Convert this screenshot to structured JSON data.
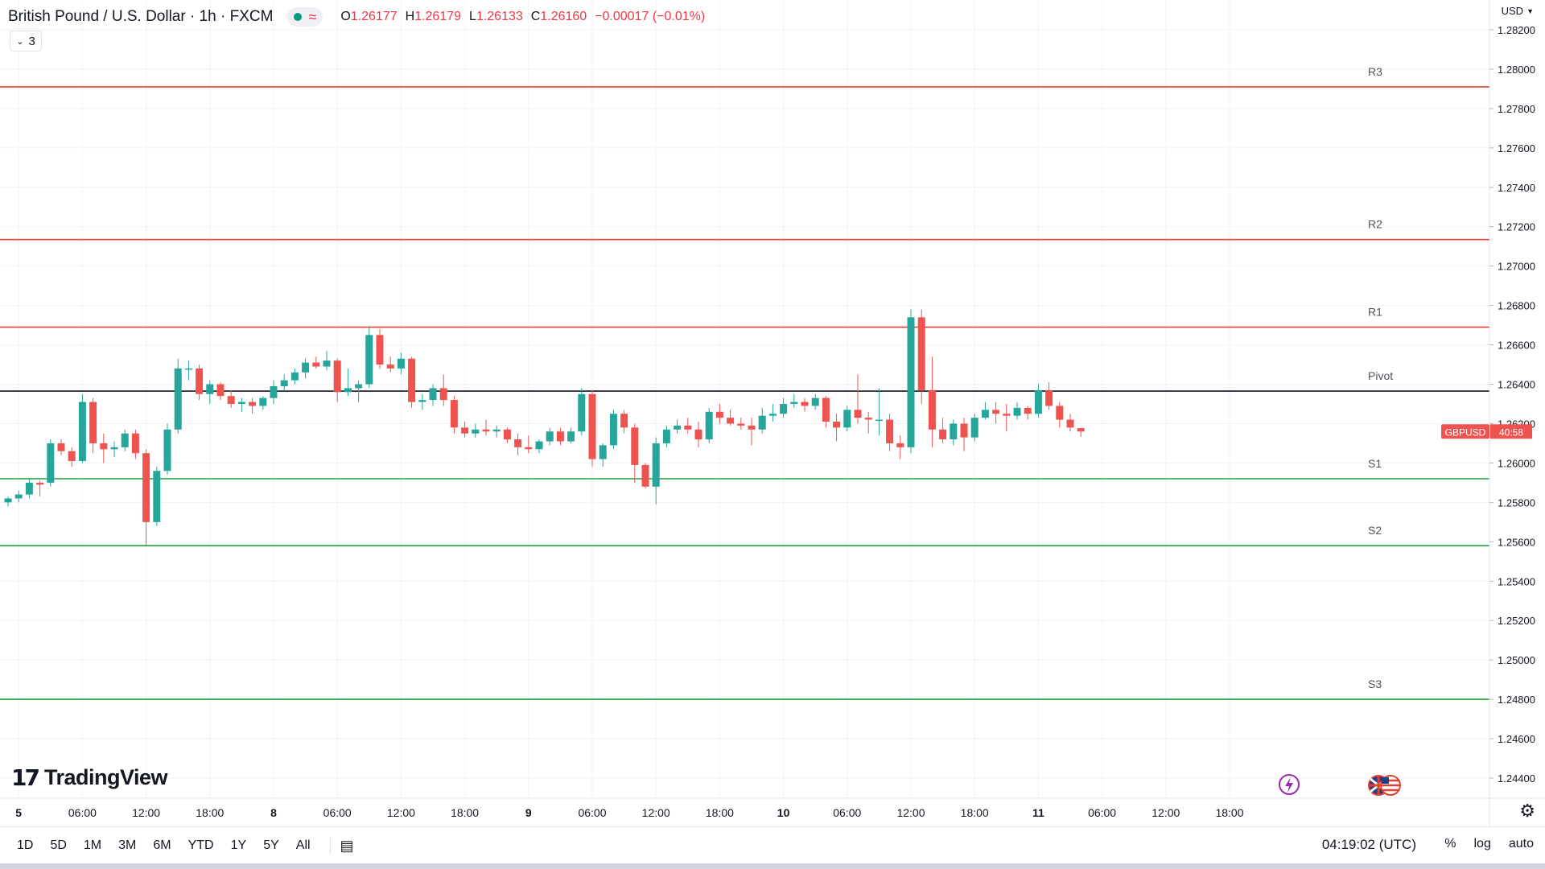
{
  "header": {
    "title": "British Pound / U.S. Dollar · 1h · FXCM",
    "ohlc": [
      {
        "key": "O",
        "value": "1.26177"
      },
      {
        "key": "H",
        "value": "1.26179"
      },
      {
        "key": "L",
        "value": "1.26133"
      },
      {
        "key": "C",
        "value": "1.26160"
      },
      {
        "key": "",
        "value": "−0.00017 (−0.01%)"
      }
    ],
    "collapsed_count": "3",
    "currency": "USD"
  },
  "brand": {
    "name": "TradingView",
    "mark": "17"
  },
  "price_tag": {
    "symbol": "GBPUSD",
    "countdown": "40:58",
    "price": 1.2616
  },
  "bottom_bar": {
    "ranges": [
      "1D",
      "5D",
      "1M",
      "3M",
      "6M",
      "YTD",
      "1Y",
      "5Y",
      "All"
    ],
    "time": "04:19:02 (UTC)",
    "scale": [
      "%",
      "log",
      "auto"
    ]
  },
  "colors": {
    "up": "#26a69a",
    "down": "#ef5350",
    "resistance": "#e0402d",
    "support": "#23a33a",
    "pivot": "#131722"
  },
  "chart_data": {
    "type": "candlestick",
    "title": "British Pound / U.S. Dollar · 1h · FXCM",
    "ylim": [
      1.243,
      1.2825
    ],
    "y_ticks": [
      "1.28200",
      "1.28000",
      "1.27800",
      "1.27600",
      "1.27400",
      "1.27200",
      "1.27000",
      "1.26800",
      "1.26600",
      "1.26400",
      "1.26200",
      "1.26000",
      "1.25800",
      "1.25600",
      "1.25400",
      "1.25200",
      "1.25000",
      "1.24800",
      "1.24600",
      "1.24400"
    ],
    "x_ticks": [
      {
        "label": "5",
        "index": 1
      },
      {
        "label": "06:00",
        "index": 7
      },
      {
        "label": "12:00",
        "index": 13
      },
      {
        "label": "18:00",
        "index": 19
      },
      {
        "label": "8",
        "index": 25
      },
      {
        "label": "06:00",
        "index": 31
      },
      {
        "label": "12:00",
        "index": 37
      },
      {
        "label": "18:00",
        "index": 43
      },
      {
        "label": "9",
        "index": 49
      },
      {
        "label": "06:00",
        "index": 55
      },
      {
        "label": "12:00",
        "index": 61
      },
      {
        "label": "18:00",
        "index": 67
      },
      {
        "label": "10",
        "index": 73
      },
      {
        "label": "06:00",
        "index": 79
      },
      {
        "label": "12:00",
        "index": 85
      },
      {
        "label": "18:00",
        "index": 91
      },
      {
        "label": "11",
        "index": 97
      },
      {
        "label": "06:00",
        "index": 103
      },
      {
        "label": "12:00",
        "index": 109
      },
      {
        "label": "18:00",
        "index": 115
      }
    ],
    "levels": [
      {
        "label": "R3",
        "value": 1.2791,
        "kind": "resistance"
      },
      {
        "label": "R2",
        "value": 1.27135,
        "kind": "resistance"
      },
      {
        "label": "R1",
        "value": 1.2669,
        "kind": "resistance"
      },
      {
        "label": "Pivot",
        "value": 1.26365,
        "kind": "pivot"
      },
      {
        "label": "S1",
        "value": 1.2592,
        "kind": "support"
      },
      {
        "label": "S2",
        "value": 1.2558,
        "kind": "support"
      },
      {
        "label": "S3",
        "value": 1.248,
        "kind": "support"
      }
    ],
    "candles": [
      [
        1.258,
        1.2583,
        1.2578,
        1.2582
      ],
      [
        1.2582,
        1.2586,
        1.258,
        1.2584
      ],
      [
        1.2584,
        1.2592,
        1.2582,
        1.259
      ],
      [
        1.259,
        1.2591,
        1.2583,
        1.2589
      ],
      [
        1.259,
        1.2612,
        1.2588,
        1.261
      ],
      [
        1.261,
        1.2612,
        1.2604,
        1.2606
      ],
      [
        1.2606,
        1.2608,
        1.2598,
        1.2601
      ],
      [
        1.2601,
        1.2635,
        1.26,
        1.2631
      ],
      [
        1.2631,
        1.2633,
        1.2605,
        1.261
      ],
      [
        1.261,
        1.2615,
        1.26,
        1.2607
      ],
      [
        1.2607,
        1.2611,
        1.2603,
        1.2608
      ],
      [
        1.2608,
        1.2617,
        1.2606,
        1.2615
      ],
      [
        1.2615,
        1.2617,
        1.2602,
        1.2605
      ],
      [
        1.2605,
        1.2607,
        1.2558,
        1.257
      ],
      [
        1.257,
        1.2598,
        1.2568,
        1.2596
      ],
      [
        1.2596,
        1.262,
        1.2594,
        1.2617
      ],
      [
        1.2617,
        1.2653,
        1.2615,
        1.2648
      ],
      [
        1.2648,
        1.2652,
        1.2642,
        1.2648
      ],
      [
        1.2648,
        1.265,
        1.2632,
        1.2635
      ],
      [
        1.2635,
        1.2642,
        1.263,
        1.264
      ],
      [
        1.264,
        1.2641,
        1.2632,
        1.2634
      ],
      [
        1.2634,
        1.2637,
        1.2628,
        1.263
      ],
      [
        1.263,
        1.2633,
        1.2626,
        1.2631
      ],
      [
        1.2631,
        1.2633,
        1.2625,
        1.2629
      ],
      [
        1.2629,
        1.2634,
        1.2627,
        1.2633
      ],
      [
        1.2633,
        1.2642,
        1.263,
        1.2639
      ],
      [
        1.2639,
        1.2645,
        1.2637,
        1.2642
      ],
      [
        1.2642,
        1.2648,
        1.264,
        1.2646
      ],
      [
        1.2646,
        1.2653,
        1.2643,
        1.2651
      ],
      [
        1.2651,
        1.2654,
        1.2648,
        1.2649
      ],
      [
        1.2649,
        1.2657,
        1.2647,
        1.2652
      ],
      [
        1.2652,
        1.2653,
        1.2631,
        1.2636
      ],
      [
        1.2636,
        1.2648,
        1.2634,
        1.2638
      ],
      [
        1.2638,
        1.2642,
        1.2631,
        1.264
      ],
      [
        1.264,
        1.2669,
        1.2638,
        1.2665
      ],
      [
        1.2665,
        1.2668,
        1.2648,
        1.265
      ],
      [
        1.265,
        1.2654,
        1.2646,
        1.2648
      ],
      [
        1.2648,
        1.2656,
        1.2645,
        1.2653
      ],
      [
        1.2653,
        1.2654,
        1.2628,
        1.2631
      ],
      [
        1.2631,
        1.2635,
        1.2627,
        1.2632
      ],
      [
        1.2632,
        1.264,
        1.2629,
        1.2638
      ],
      [
        1.2638,
        1.2645,
        1.2629,
        1.2632
      ],
      [
        1.2632,
        1.2634,
        1.2615,
        1.2618
      ],
      [
        1.2618,
        1.2621,
        1.2613,
        1.2615
      ],
      [
        1.2615,
        1.262,
        1.2613,
        1.2617
      ],
      [
        1.2617,
        1.2622,
        1.2614,
        1.2616
      ],
      [
        1.2616,
        1.2619,
        1.2613,
        1.2617
      ],
      [
        1.2617,
        1.2618,
        1.261,
        1.2612
      ],
      [
        1.2612,
        1.2615,
        1.2604,
        1.2608
      ],
      [
        1.2608,
        1.2614,
        1.2605,
        1.2607
      ],
      [
        1.2607,
        1.2612,
        1.2605,
        1.2611
      ],
      [
        1.2611,
        1.2618,
        1.2609,
        1.2616
      ],
      [
        1.2616,
        1.2618,
        1.2609,
        1.2611
      ],
      [
        1.2611,
        1.2618,
        1.261,
        1.2616
      ],
      [
        1.2616,
        1.2638,
        1.2614,
        1.2635
      ],
      [
        1.2635,
        1.2637,
        1.2598,
        1.2602
      ],
      [
        1.2602,
        1.261,
        1.2598,
        1.2609
      ],
      [
        1.2609,
        1.2627,
        1.2607,
        1.2625
      ],
      [
        1.2625,
        1.2627,
        1.2615,
        1.2618
      ],
      [
        1.2618,
        1.262,
        1.259,
        1.2599
      ],
      [
        1.2599,
        1.26,
        1.2587,
        1.2588
      ],
      [
        1.2588,
        1.2613,
        1.2579,
        1.261
      ],
      [
        1.261,
        1.2619,
        1.2608,
        1.2617
      ],
      [
        1.2617,
        1.2622,
        1.2615,
        1.2619
      ],
      [
        1.2619,
        1.2623,
        1.2615,
        1.2617
      ],
      [
        1.2617,
        1.2621,
        1.2608,
        1.2612
      ],
      [
        1.2612,
        1.2628,
        1.261,
        1.2626
      ],
      [
        1.2626,
        1.263,
        1.262,
        1.2623
      ],
      [
        1.2623,
        1.2627,
        1.2619,
        1.262
      ],
      [
        1.262,
        1.2623,
        1.2617,
        1.2619
      ],
      [
        1.2619,
        1.2623,
        1.2609,
        1.2617
      ],
      [
        1.2617,
        1.2628,
        1.2615,
        1.2624
      ],
      [
        1.2624,
        1.263,
        1.2621,
        1.2625
      ],
      [
        1.2625,
        1.2633,
        1.2623,
        1.263
      ],
      [
        1.263,
        1.2635,
        1.2628,
        1.2631
      ],
      [
        1.2631,
        1.2633,
        1.2626,
        1.2629
      ],
      [
        1.2629,
        1.2635,
        1.2627,
        1.2633
      ],
      [
        1.2633,
        1.2634,
        1.2618,
        1.2621
      ],
      [
        1.2621,
        1.2625,
        1.2611,
        1.2618
      ],
      [
        1.2618,
        1.2629,
        1.2616,
        1.2627
      ],
      [
        1.2627,
        1.2645,
        1.262,
        1.2623
      ],
      [
        1.2623,
        1.2626,
        1.2615,
        1.2622
      ],
      [
        1.2622,
        1.2638,
        1.2614,
        1.2622
      ],
      [
        1.2622,
        1.2625,
        1.2606,
        1.261
      ],
      [
        1.261,
        1.2614,
        1.2602,
        1.2608
      ],
      [
        1.2608,
        1.2678,
        1.2605,
        1.2674
      ],
      [
        1.2674,
        1.2678,
        1.263,
        1.2637
      ],
      [
        1.2637,
        1.2654,
        1.2608,
        1.2617
      ],
      [
        1.2617,
        1.2623,
        1.261,
        1.2612
      ],
      [
        1.2612,
        1.2622,
        1.2609,
        1.262
      ],
      [
        1.262,
        1.2623,
        1.2606,
        1.2613
      ],
      [
        1.2613,
        1.2625,
        1.2611,
        1.2623
      ],
      [
        1.2623,
        1.2631,
        1.2622,
        1.2627
      ],
      [
        1.2627,
        1.2631,
        1.262,
        1.2625
      ],
      [
        1.2625,
        1.263,
        1.2616,
        1.2624
      ],
      [
        1.2624,
        1.2631,
        1.2622,
        1.2628
      ],
      [
        1.2628,
        1.2629,
        1.2622,
        1.2625
      ],
      [
        1.2625,
        1.264,
        1.2623,
        1.2637
      ],
      [
        1.2637,
        1.2641,
        1.2627,
        1.2629
      ],
      [
        1.2629,
        1.2631,
        1.2618,
        1.2622
      ],
      [
        1.2622,
        1.2625,
        1.2616,
        1.2618
      ],
      [
        1.26177,
        1.26179,
        1.26133,
        1.2616
      ]
    ]
  }
}
